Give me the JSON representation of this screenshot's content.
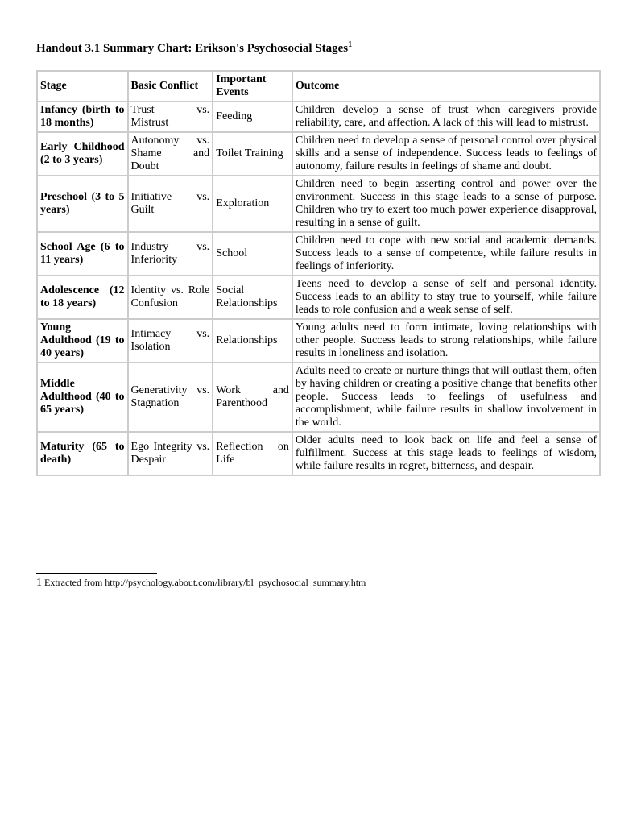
{
  "title": "Handout 3.1 Summary Chart: Erikson's Psychosocial Stages",
  "title_sup": "1",
  "headers": {
    "stage": "Stage",
    "conflict": "Basic Conflict",
    "events": "Important Events",
    "outcome": "Outcome"
  },
  "rows": [
    {
      "stage": "Infancy (birth to 18 months)",
      "conflict": "Trust vs. Mistrust",
      "events": "Feeding",
      "outcome": "Children develop a sense of trust when caregivers provide reliability, care, and affection. A lack of this will lead to mistrust."
    },
    {
      "stage": "Early Childhood (2 to 3 years)",
      "conflict": "Autonomy vs. Shame and Doubt",
      "events": "Toilet Training",
      "outcome": "Children need to develop a sense of personal control over physical skills and a sense of independence. Success leads to feelings of autonomy, failure results in feelings of shame and doubt."
    },
    {
      "stage": "Preschool (3 to 5 years)",
      "conflict": "Initiative vs. Guilt",
      "events": "Exploration",
      "outcome": "Children need to begin asserting control and power over the environment. Success in this stage leads to a sense of purpose. Children who try to exert too much power experience disapproval, resulting in a sense of guilt."
    },
    {
      "stage": "School Age (6 to 11 years)",
      "conflict": "Industry vs. Inferiority",
      "events": "School",
      "outcome": "Children need to cope with new social and academic demands. Success leads to a sense of competence, while failure results in feelings of inferiority."
    },
    {
      "stage": "Adolescence (12 to 18 years)",
      "conflict": "Identity vs. Role Confusion",
      "events": "Social Relationships",
      "outcome": "Teens need to develop a sense of self and personal identity. Success leads to an ability to stay true to yourself, while failure leads to role confusion and a weak sense of self."
    },
    {
      "stage": "Young Adulthood (19 to 40 years)",
      "conflict": "Intimacy vs. Isolation",
      "events": "Relationships",
      "outcome": "Young adults need to form intimate, loving relationships with other people. Success leads to strong relationships, while failure results in loneliness and isolation."
    },
    {
      "stage": "Middle Adulthood (40 to 65 years)",
      "conflict": "Generativity vs. Stagnation",
      "events": "Work and Parenthood",
      "outcome": "Adults need to create or nurture things that will outlast them, often by having children or creating a positive change that benefits other people. Success leads to feelings of usefulness and accomplishment, while failure results in shallow involvement in the world."
    },
    {
      "stage": "Maturity (65 to death)",
      "conflict": "Ego Integrity vs. Despair",
      "events": "Reflection on Life",
      "outcome": "Older adults need to look back on life and feel a sense of fulfillment. Success at this stage leads to feelings of wisdom, while failure results in regret, bitterness, and despair."
    }
  ],
  "footnote_num": "1",
  "footnote_text": " Extracted from http://psychology.about.com/library/bl_psychosocial_summary.htm"
}
